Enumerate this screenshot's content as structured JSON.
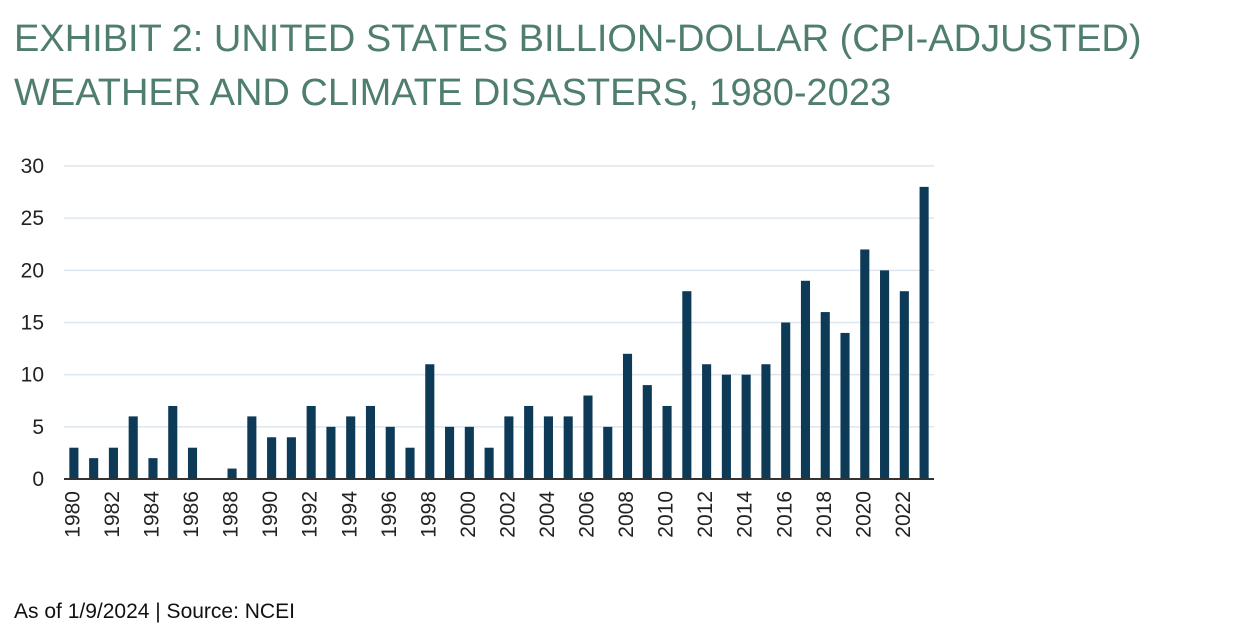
{
  "header": {
    "title": "EXHIBIT 2: UNITED STATES BILLION-DOLLAR (CPI-ADJUSTED) WEATHER AND CLIMATE DISASTERS, 1980-2023"
  },
  "footer": {
    "note": "As of 1/9/2024 | Source: NCEI"
  },
  "colors": {
    "title": "#4f7d6e",
    "bar": "#0d3a57",
    "grid": "#dde6ee",
    "axis": "#333333"
  },
  "chart_data": {
    "type": "bar",
    "title": "",
    "xlabel": "",
    "ylabel": "",
    "ylim": [
      0,
      30
    ],
    "yticks": [
      0,
      5,
      10,
      15,
      20,
      25,
      30
    ],
    "grid": true,
    "categories": [
      "1980",
      "1981",
      "1982",
      "1983",
      "1984",
      "1985",
      "1986",
      "1987",
      "1988",
      "1989",
      "1990",
      "1991",
      "1992",
      "1993",
      "1994",
      "1995",
      "1996",
      "1997",
      "1998",
      "1999",
      "2000",
      "2001",
      "2002",
      "2003",
      "2004",
      "2005",
      "2006",
      "2007",
      "2008",
      "2009",
      "2010",
      "2011",
      "2012",
      "2013",
      "2014",
      "2015",
      "2016",
      "2017",
      "2018",
      "2019",
      "2020",
      "2021",
      "2022",
      "2023"
    ],
    "xtick_labels": [
      "1980",
      "1982",
      "1984",
      "1986",
      "1988",
      "1990",
      "1992",
      "1994",
      "1996",
      "1998",
      "2000",
      "2002",
      "2004",
      "2006",
      "2008",
      "2010",
      "2012",
      "2014",
      "2016",
      "2018",
      "2020",
      "2022"
    ],
    "values": [
      3,
      2,
      3,
      6,
      2,
      7,
      3,
      0,
      1,
      6,
      4,
      4,
      7,
      5,
      6,
      7,
      5,
      3,
      11,
      5,
      5,
      3,
      6,
      7,
      6,
      6,
      8,
      5,
      12,
      9,
      7,
      18,
      11,
      10,
      10,
      11,
      15,
      19,
      16,
      14,
      22,
      20,
      18,
      28
    ]
  }
}
